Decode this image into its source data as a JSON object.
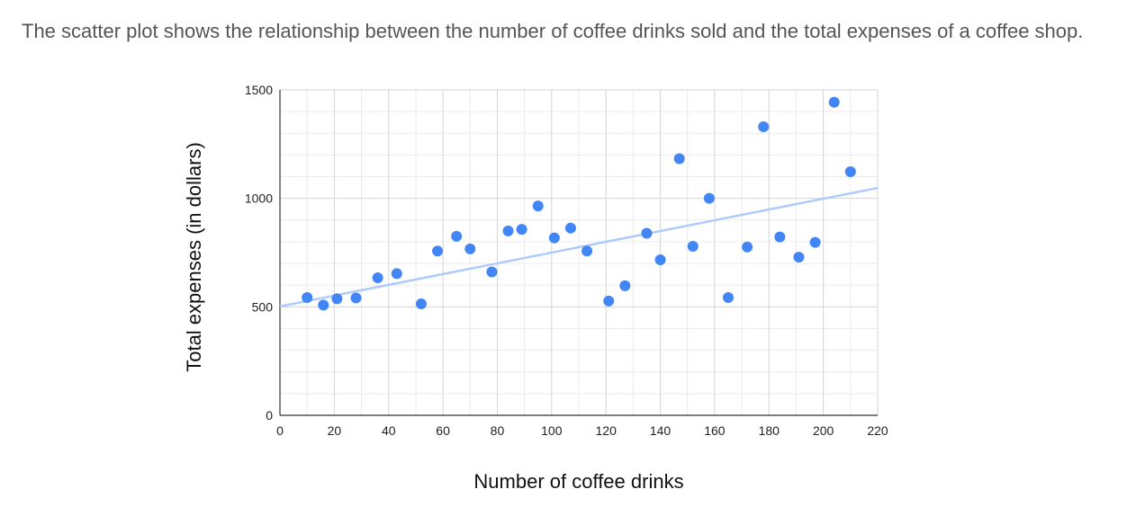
{
  "intro_text": "The scatter plot shows the relationship between the number of coffee drinks sold and the total expenses of a coffee shop.",
  "chart_data": {
    "type": "scatter",
    "title": "",
    "xlabel": "Number of coffee drinks",
    "ylabel": "Total expenses (in dollars)",
    "xlim": [
      0,
      220
    ],
    "ylim": [
      0,
      1500
    ],
    "x_ticks": [
      0,
      20,
      40,
      60,
      80,
      100,
      120,
      140,
      160,
      180,
      200,
      220
    ],
    "y_ticks": [
      0,
      500,
      1000,
      1500
    ],
    "grid": true,
    "point_color": "#4285f4",
    "trendline_color": "#aecbfa",
    "trendline": {
      "x": [
        0,
        220
      ],
      "y": [
        502,
        1048
      ]
    },
    "series": [
      {
        "name": "Coffee shop",
        "x": [
          10,
          16,
          21,
          28,
          36,
          43,
          52,
          58,
          65,
          70,
          78,
          84,
          89,
          95,
          101,
          107,
          113,
          121,
          127,
          135,
          140,
          147,
          152,
          158,
          165,
          172,
          178,
          184,
          191,
          197,
          204,
          210
        ],
        "y": [
          543,
          508,
          537,
          541,
          634,
          653,
          514,
          757,
          825,
          767,
          661,
          850,
          857,
          965,
          818,
          863,
          757,
          527,
          597,
          839,
          717,
          1183,
          779,
          1000,
          543,
          776,
          1330,
          822,
          729,
          797,
          1443,
          1123
        ]
      }
    ]
  }
}
